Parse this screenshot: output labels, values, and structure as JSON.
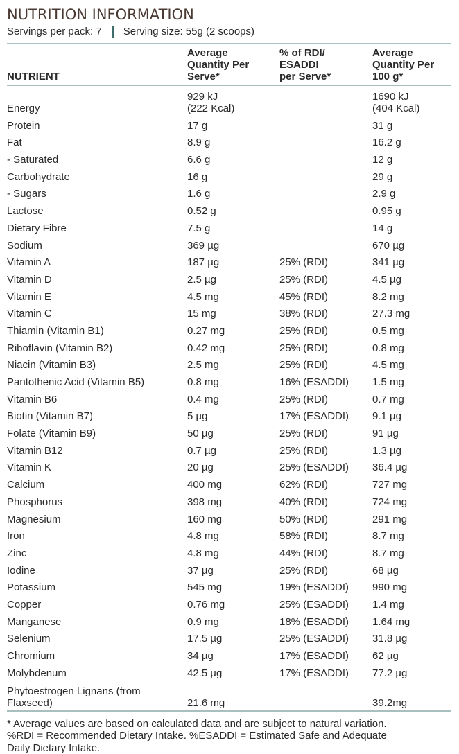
{
  "header": {
    "title": "NUTRITION INFORMATION",
    "servings_per_pack": "Servings per pack: 7",
    "serving_size": "Serving size: 55g (2 scoops)",
    "divider_color": "#3d6e6a",
    "title_color": "#4a3a33",
    "rule_color": "#a8bfbf"
  },
  "table": {
    "headers": {
      "nutrient": "NUTRIENT",
      "per_serve": [
        "Average",
        "Quantity Per",
        "Serve*"
      ],
      "rdi": [
        "% of RDI/",
        "ESADDI",
        "per Serve*"
      ],
      "per_100g": [
        "Average",
        "Quantity Per",
        "100 g*"
      ]
    },
    "rows": [
      {
        "nutrient": "Energy",
        "serve": [
          "929 kJ",
          "(222 Kcal)"
        ],
        "rdi": "",
        "per100": [
          "1690 kJ",
          "(404 Kcal)"
        ]
      },
      {
        "nutrient": "Protein",
        "serve": "17 g",
        "rdi": "",
        "per100": "31 g"
      },
      {
        "nutrient": "Fat",
        "serve": "8.9 g",
        "rdi": "",
        "per100": "16.2 g"
      },
      {
        "nutrient": "- Saturated",
        "serve": "6.6 g",
        "rdi": "",
        "per100": "12 g"
      },
      {
        "nutrient": "Carbohydrate",
        "serve": "16 g",
        "rdi": "",
        "per100": "29 g"
      },
      {
        "nutrient": "- Sugars",
        "serve": "1.6 g",
        "rdi": "",
        "per100": "2.9 g"
      },
      {
        "nutrient": "Lactose",
        "serve": "0.52 g",
        "rdi": "",
        "per100": "0.95 g"
      },
      {
        "nutrient": "Dietary Fibre",
        "serve": "7.5 g",
        "rdi": "",
        "per100": "14 g"
      },
      {
        "nutrient": "Sodium",
        "serve": "369 µg",
        "rdi": "",
        "per100": "670 µg"
      },
      {
        "nutrient": "Vitamin A",
        "serve": "187 µg",
        "rdi": "25% (RDI)",
        "per100": "341 µg"
      },
      {
        "nutrient": "Vitamin D",
        "serve": "2.5 µg",
        "rdi": "25% (RDI)",
        "per100": "4.5 µg"
      },
      {
        "nutrient": "Vitamin E",
        "serve": "4.5 mg",
        "rdi": "45% (RDI)",
        "per100": "8.2 mg"
      },
      {
        "nutrient": "Vitamin C",
        "serve": "15 mg",
        "rdi": "38% (RDI)",
        "per100": "27.3 mg"
      },
      {
        "nutrient": "Thiamin (Vitamin B1)",
        "serve": "0.27 mg",
        "rdi": "25% (RDI)",
        "per100": "0.5 mg"
      },
      {
        "nutrient": "Riboflavin (Vitamin B2)",
        "serve": "0.42 mg",
        "rdi": "25% (RDI)",
        "per100": "0.8 mg"
      },
      {
        "nutrient": "Niacin (Vitamin B3)",
        "serve": "2.5 mg",
        "rdi": "25% (RDI)",
        "per100": "4.5 mg"
      },
      {
        "nutrient": "Pantothenic Acid (Vitamin B5)",
        "serve": "0.8 mg",
        "rdi": "16% (ESADDI)",
        "per100": "1.5 mg"
      },
      {
        "nutrient": "Vitamin B6",
        "serve": "0.4 mg",
        "rdi": "25% (RDI)",
        "per100": "0.7 mg"
      },
      {
        "nutrient": "Biotin (Vitamin B7)",
        "serve": "5 µg",
        "rdi": "17% (ESADDI)",
        "per100": "9.1 µg"
      },
      {
        "nutrient": "Folate (Vitamin B9)",
        "serve": "50 µg",
        "rdi": "25% (RDI)",
        "per100": "91 µg"
      },
      {
        "nutrient": "Vitamin B12",
        "serve": "0.7 µg",
        "rdi": "25% (RDI)",
        "per100": "1.3 µg"
      },
      {
        "nutrient": "Vitamin K",
        "serve": "20 µg",
        "rdi": "25% (ESADDI)",
        "per100": "36.4 µg"
      },
      {
        "nutrient": "Calcium",
        "serve": "400 mg",
        "rdi": "62% (RDI)",
        "per100": "727 mg"
      },
      {
        "nutrient": "Phosphorus",
        "serve": "398 mg",
        "rdi": "40% (RDI)",
        "per100": "724 mg"
      },
      {
        "nutrient": "Magnesium",
        "serve": "160 mg",
        "rdi": "50% (RDI)",
        "per100": "291 mg"
      },
      {
        "nutrient": "Iron",
        "serve": "4.8 mg",
        "rdi": "58% (RDI)",
        "per100": "8.7 mg"
      },
      {
        "nutrient": "Zinc",
        "serve": "4.8 mg",
        "rdi": "44% (RDI)",
        "per100": "8.7 mg"
      },
      {
        "nutrient": "Iodine",
        "serve": "37 µg",
        "rdi": "25% (RDI)",
        "per100": "68 µg"
      },
      {
        "nutrient": "Potassium",
        "serve": "545 mg",
        "rdi": "19% (ESADDI)",
        "per100": "990 mg"
      },
      {
        "nutrient": "Copper",
        "serve": "0.76 mg",
        "rdi": "25% (ESADDI)",
        "per100": "1.4 mg"
      },
      {
        "nutrient": "Manganese",
        "serve": "0.9 mg",
        "rdi": "18% (ESADDI)",
        "per100": "1.64 mg"
      },
      {
        "nutrient": "Selenium",
        "serve": "17.5 µg",
        "rdi": "25% (ESADDI)",
        "per100": "31.8 µg"
      },
      {
        "nutrient": "Chromium",
        "serve": "34 µg",
        "rdi": "17% (ESADDI)",
        "per100": "62 µg"
      },
      {
        "nutrient": "Molybdenum",
        "serve": "42.5 µg",
        "rdi": "17% (ESADDI)",
        "per100": "77.2 µg"
      },
      {
        "nutrient": [
          "Phytoestrogen Lignans (from",
          "Flaxseed)"
        ],
        "serve": "21.6 mg",
        "rdi": "",
        "per100": "39.2mg"
      }
    ]
  },
  "footnote": [
    "* Average values are based on calculated data and are subject to natural variation.",
    "%RDI = Recommended Dietary Intake. %ESADDI = Estimated Safe and Adequate",
    "Daily Dietary Intake."
  ]
}
